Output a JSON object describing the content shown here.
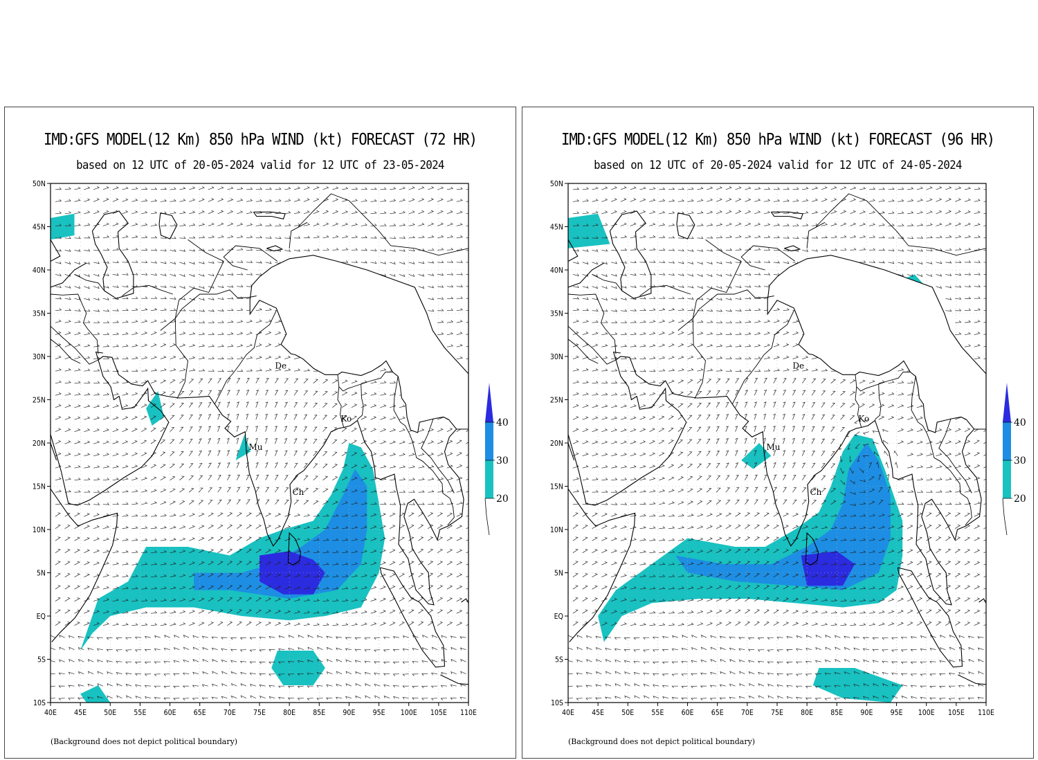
{
  "panels": [
    {
      "id": "left",
      "title": "IMD:GFS MODEL(12 Km) 850 hPa WIND (kt) FORECAST (72 HR)",
      "subtitle": "based on 12 UTC of 20-05-2024 valid for 12 UTC of 23-05-2024",
      "note": "(Background does not depict political boundary)",
      "forecast_hour": 72,
      "city_labels": [
        {
          "text": "Mu",
          "lon": 73.2,
          "lat": 19.2
        },
        {
          "text": "Ch",
          "lon": 80.5,
          "lat": 14.0
        },
        {
          "text": "Ko",
          "lon": 88.6,
          "lat": 22.5
        },
        {
          "text": "De",
          "lon": 77.6,
          "lat": 28.6
        }
      ],
      "wind_shading": [
        {
          "level": 20,
          "poly": [
            [
              45,
              -4
            ],
            [
              48,
              2
            ],
            [
              53,
              4
            ],
            [
              56,
              8
            ],
            [
              63,
              8
            ],
            [
              70,
              7
            ],
            [
              75,
              9
            ],
            [
              79,
              10
            ],
            [
              84,
              11
            ],
            [
              87,
              14
            ],
            [
              89,
              17
            ],
            [
              90,
              20
            ],
            [
              92,
              19.5
            ],
            [
              94,
              17
            ],
            [
              95,
              13
            ],
            [
              96,
              9
            ],
            [
              95,
              5
            ],
            [
              92,
              1
            ],
            [
              86,
              0
            ],
            [
              80,
              -0.5
            ],
            [
              72,
              0
            ],
            [
              64,
              1
            ],
            [
              56,
              1
            ],
            [
              50,
              0
            ],
            [
              47,
              -2
            ]
          ]
        },
        {
          "level": 20,
          "poly": [
            [
              78,
              -4
            ],
            [
              84,
              -4
            ],
            [
              86,
              -6
            ],
            [
              84,
              -8
            ],
            [
              79,
              -8
            ],
            [
              77,
              -6
            ]
          ]
        },
        {
          "level": 20,
          "poly": [
            [
              45,
              -9
            ],
            [
              48,
              -8
            ],
            [
              50,
              -10
            ],
            [
              46,
              -10
            ]
          ]
        },
        {
          "level": 20,
          "poly": [
            [
              56,
              24
            ],
            [
              58,
              26
            ],
            [
              59,
              23
            ],
            [
              57,
              22
            ]
          ]
        },
        {
          "level": 20,
          "poly": [
            [
              71,
              18
            ],
            [
              72.5,
              21
            ],
            [
              73.5,
              19
            ]
          ]
        },
        {
          "level": 20,
          "poly": [
            [
              40,
              46
            ],
            [
              44,
              46.5
            ],
            [
              44,
              44
            ],
            [
              40,
              43.5
            ]
          ]
        },
        {
          "level": 20,
          "poly": [
            [
              83,
              37.5
            ],
            [
              86,
              39
            ],
            [
              88,
              37.5
            ],
            [
              85,
              37
            ]
          ]
        },
        {
          "level": 30,
          "poly": [
            [
              64,
              5
            ],
            [
              72,
              5
            ],
            [
              77,
              6
            ],
            [
              82,
              8
            ],
            [
              86,
              10
            ],
            [
              89,
              14
            ],
            [
              91,
              17
            ],
            [
              93,
              15
            ],
            [
              93,
              10
            ],
            [
              92,
              6
            ],
            [
              88,
              3
            ],
            [
              80,
              2
            ],
            [
              70,
              3
            ],
            [
              64,
              3
            ]
          ]
        },
        {
          "level": 40,
          "poly": [
            [
              75,
              7
            ],
            [
              80,
              7.5
            ],
            [
              84,
              6.5
            ],
            [
              86,
              5
            ],
            [
              84,
              2.5
            ],
            [
              79,
              2.5
            ],
            [
              75,
              4
            ]
          ]
        }
      ]
    },
    {
      "id": "right",
      "title": "IMD:GFS MODEL(12 Km) 850 hPa WIND (kt) FORECAST (96 HR)",
      "subtitle": "based on 12 UTC of 20-05-2024 valid for 12 UTC of 24-05-2024",
      "note": "(Background does not depict political boundary)",
      "forecast_hour": 96,
      "city_labels": [
        {
          "text": "Mu",
          "lon": 73.2,
          "lat": 19.2
        },
        {
          "text": "Ch",
          "lon": 80.5,
          "lat": 14.0
        },
        {
          "text": "Ko",
          "lon": 88.6,
          "lat": 22.5
        },
        {
          "text": "De",
          "lon": 77.6,
          "lat": 28.6
        }
      ],
      "wind_shading": [
        {
          "level": 20,
          "poly": [
            [
              45,
              0
            ],
            [
              48,
              3
            ],
            [
              54,
              6
            ],
            [
              60,
              9
            ],
            [
              68,
              8
            ],
            [
              73,
              8
            ],
            [
              78,
              10
            ],
            [
              82,
              12
            ],
            [
              84,
              15
            ],
            [
              86,
              19
            ],
            [
              88,
              21
            ],
            [
              91,
              20.5
            ],
            [
              93,
              17
            ],
            [
              96,
              11
            ],
            [
              96,
              7
            ],
            [
              95,
              3
            ],
            [
              92,
              1.5
            ],
            [
              86,
              1
            ],
            [
              78,
              1.5
            ],
            [
              70,
              2
            ],
            [
              62,
              2
            ],
            [
              54,
              1.5
            ],
            [
              49,
              0
            ],
            [
              46,
              -3
            ]
          ]
        },
        {
          "level": 20,
          "poly": [
            [
              82,
              -6
            ],
            [
              88,
              -6
            ],
            [
              96,
              -8
            ],
            [
              94,
              -10
            ],
            [
              86,
              -9.5
            ],
            [
              81,
              -8
            ]
          ]
        },
        {
          "level": 20,
          "poly": [
            [
              40,
              46
            ],
            [
              45,
              46.5
            ],
            [
              47,
              43
            ],
            [
              40,
              42.5
            ]
          ]
        },
        {
          "level": 20,
          "poly": [
            [
              93,
              38
            ],
            [
              98,
              39.5
            ],
            [
              100,
              38
            ],
            [
              95,
              37
            ]
          ]
        },
        {
          "level": 20,
          "poly": [
            [
              69,
              18
            ],
            [
              72,
              20
            ],
            [
              74,
              18.5
            ],
            [
              71,
              17
            ]
          ]
        },
        {
          "level": 30,
          "poly": [
            [
              58,
              7
            ],
            [
              66,
              6
            ],
            [
              74,
              6
            ],
            [
              80,
              8
            ],
            [
              84,
              10
            ],
            [
              86,
              13
            ],
            [
              87,
              17
            ],
            [
              90,
              20
            ],
            [
              92,
              18
            ],
            [
              94,
              14
            ],
            [
              94,
              9
            ],
            [
              92,
              5
            ],
            [
              86,
              3
            ],
            [
              78,
              3.5
            ],
            [
              68,
              4
            ],
            [
              60,
              5
            ]
          ]
        },
        {
          "level": 40,
          "poly": [
            [
              79,
              7
            ],
            [
              85,
              7.5
            ],
            [
              88,
              6
            ],
            [
              86,
              3.5
            ],
            [
              80,
              3.5
            ]
          ]
        }
      ]
    }
  ],
  "colorbar": {
    "labels": [
      "40",
      "30",
      "20"
    ],
    "colors": {
      "level20": "#19c1c1",
      "level30": "#1d8ee3",
      "level40": "#2b2be0"
    }
  },
  "axes": {
    "lon_ticks": [
      "40E",
      "45E",
      "50E",
      "55E",
      "60E",
      "65E",
      "70E",
      "75E",
      "80E",
      "85E",
      "90E",
      "95E",
      "100E",
      "105E",
      "110E"
    ],
    "lat_ticks": [
      "50N",
      "45N",
      "40N",
      "35N",
      "30N",
      "25N",
      "20N",
      "15N",
      "10N",
      "5N",
      "EQ",
      "5S",
      "10S"
    ],
    "lon_range": [
      40,
      110
    ],
    "lat_range": [
      -10,
      50
    ]
  },
  "colors": {
    "land_line": "#000000",
    "barb": "#222222",
    "grid": "#b5b5b5",
    "colorbar_tip": "#2b2be0"
  }
}
